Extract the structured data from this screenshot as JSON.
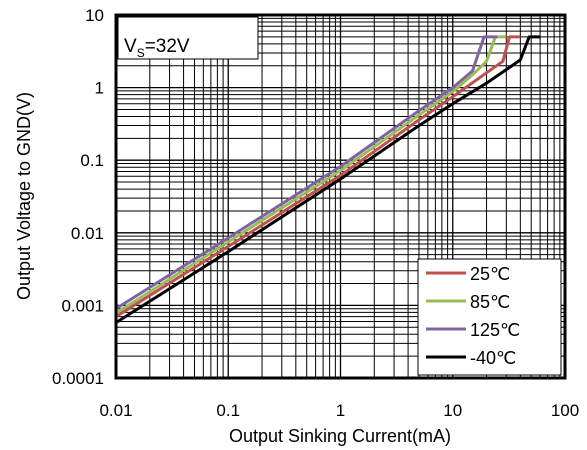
{
  "chart_data": {
    "type": "line",
    "title": "",
    "xlabel": "Output Sinking Current(mA)",
    "ylabel": "Output Voltage to GND(V)",
    "x_scale": "log",
    "y_scale": "log",
    "xlim": [
      0.01,
      100
    ],
    "ylim": [
      0.0001,
      10
    ],
    "x_ticks": [
      "0.01",
      "0.1",
      "1",
      "10",
      "100"
    ],
    "y_ticks": [
      "0.0001",
      "0.001",
      "0.01",
      "0.1",
      "1",
      "10"
    ],
    "grid": true,
    "annotation": {
      "prefix": "V",
      "subscript": "S",
      "suffix": "=32V"
    },
    "legend_position": "bottom-right",
    "series": [
      {
        "name": "25℃",
        "color": "#c0504d",
        "x": [
          0.01,
          0.1,
          1,
          5,
          10,
          20,
          28,
          32,
          40
        ],
        "y": [
          0.0007,
          0.0065,
          0.062,
          0.36,
          0.75,
          1.6,
          2.3,
          5.0,
          5.0
        ]
      },
      {
        "name": "85℃",
        "color": "#9bbb59",
        "x": [
          0.01,
          0.1,
          1,
          5,
          10,
          15,
          20,
          24,
          30
        ],
        "y": [
          0.00078,
          0.0075,
          0.072,
          0.42,
          0.88,
          1.5,
          2.3,
          5.0,
          5.0
        ]
      },
      {
        "name": "125℃",
        "color": "#8064a2",
        "x": [
          0.01,
          0.1,
          1,
          5,
          10,
          15,
          19,
          25
        ],
        "y": [
          0.0009,
          0.0085,
          0.082,
          0.48,
          1.0,
          1.7,
          5.0,
          5.0
        ]
      },
      {
        "name": "-40℃",
        "color": "#000000",
        "x": [
          0.01,
          0.1,
          1,
          5,
          10,
          20,
          40,
          48,
          60
        ],
        "y": [
          0.00058,
          0.0055,
          0.055,
          0.3,
          0.6,
          1.15,
          2.4,
          5.0,
          5.0
        ]
      }
    ]
  }
}
